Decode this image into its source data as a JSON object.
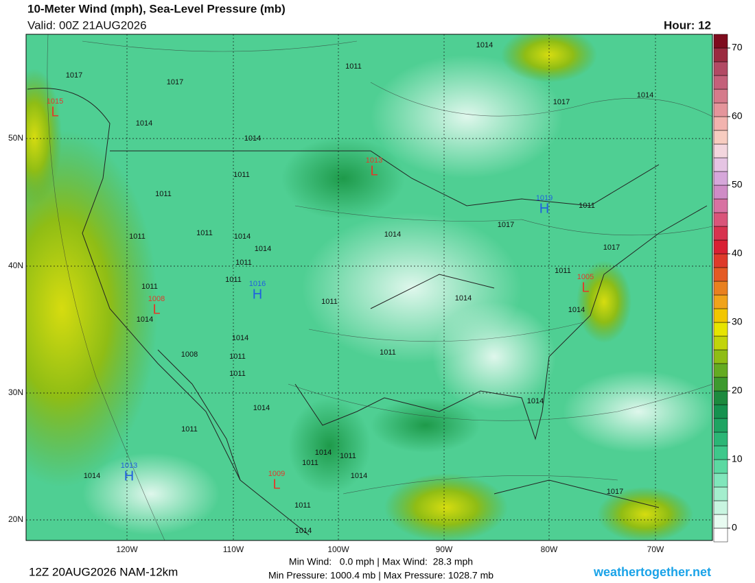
{
  "header": {
    "title": "10-Meter Wind (mph), Sea-Level Pressure (mb)",
    "valid": "Valid: 00Z 21AUG2026",
    "hour": "Hour: 12"
  },
  "latitude_labels": [
    "50N",
    "40N",
    "30N",
    "20N"
  ],
  "longitude_labels": [
    "120W",
    "110W",
    "100W",
    "90W",
    "80W",
    "70W"
  ],
  "pressure_centers": [
    {
      "letter": "L",
      "value": "1015"
    },
    {
      "letter": "L",
      "value": "1013"
    },
    {
      "letter": "H",
      "value": "1019"
    },
    {
      "letter": "H",
      "value": "1016"
    },
    {
      "letter": "L",
      "value": "1008"
    },
    {
      "letter": "L",
      "value": "1005"
    },
    {
      "letter": "H",
      "value": "1013"
    },
    {
      "letter": "L",
      "value": "1009"
    }
  ],
  "isobar_labels": [
    "1017",
    "1017",
    "1014",
    "1014",
    "1011",
    "1014",
    "1011",
    "1011",
    "1011",
    "1011",
    "1014",
    "1014",
    "1011",
    "1011",
    "1011",
    "1014",
    "1014",
    "1008",
    "1011",
    "1011",
    "1014",
    "1011",
    "1014",
    "1011",
    "1011",
    "1014",
    "1011",
    "1014",
    "1011",
    "1014",
    "1014",
    "1014",
    "1017",
    "1017",
    "1014",
    "1011",
    "1014",
    "1017",
    "1011",
    "1017",
    "1014",
    "1011"
  ],
  "colorbar": {
    "lim": [
      -2,
      72
    ],
    "ticks": [
      0,
      10,
      20,
      30,
      40,
      50,
      60,
      70
    ],
    "colors": [
      "#ffffff",
      "#e8fbf1",
      "#c8f5e0",
      "#a4eecd",
      "#80e6bb",
      "#5cd9a2",
      "#3ec88b",
      "#2bb676",
      "#1fa462",
      "#15924f",
      "#1c8a3e",
      "#3d9a2e",
      "#64ab22",
      "#8fbd15",
      "#c2d40a",
      "#e7e400",
      "#f2c600",
      "#f0a31a",
      "#e9801f",
      "#e45a24",
      "#de3a2a",
      "#d92033",
      "#d8334f",
      "#d9557a",
      "#d872a2",
      "#cf8cc6",
      "#d6a7da",
      "#e5c4e3",
      "#f3d6de",
      "#f7ccc0",
      "#f2b3ae",
      "#e4959b",
      "#d57b8b",
      "#c4617a",
      "#b24a64",
      "#9b2b40",
      "#7e0c1e"
    ]
  },
  "footer": {
    "run": "12Z 20AUG2026 NAM-12km",
    "wind": "Min Wind:   0.0 mph | Max Wind:  28.3 mph",
    "pressure": "Min Pressure: 1000.4 mb | Max Pressure: 1028.7 mb",
    "site": "weathertogether.net"
  }
}
